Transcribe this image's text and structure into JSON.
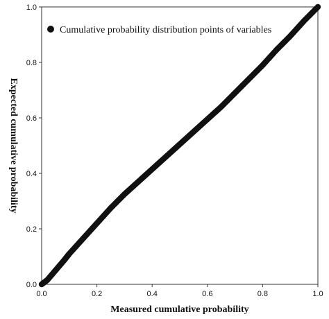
{
  "chart_data": {
    "type": "scatter",
    "xlabel": "Measured cumulative probability",
    "ylabel": "Expected cumulative probability",
    "xlim": [
      0.0,
      1.0
    ],
    "ylim": [
      0.0,
      1.0
    ],
    "x_ticks": [
      "0.0",
      "0.2",
      "0.4",
      "0.6",
      "0.8",
      "1.0"
    ],
    "y_ticks": [
      "0.0",
      "0.2",
      "0.4",
      "0.6",
      "0.8",
      "1.0"
    ],
    "grid": false,
    "legend_position": "top-left",
    "marker_color": "#111111",
    "series": [
      {
        "name": "Cumulative probability distribution points of variables",
        "x": [
          0.0,
          0.02,
          0.05,
          0.08,
          0.1,
          0.15,
          0.2,
          0.25,
          0.3,
          0.35,
          0.4,
          0.45,
          0.5,
          0.55,
          0.6,
          0.65,
          0.7,
          0.75,
          0.8,
          0.85,
          0.9,
          0.95,
          1.0
        ],
        "y": [
          0.0,
          0.015,
          0.05,
          0.085,
          0.11,
          0.165,
          0.22,
          0.275,
          0.325,
          0.37,
          0.415,
          0.46,
          0.505,
          0.55,
          0.595,
          0.64,
          0.69,
          0.74,
          0.79,
          0.845,
          0.895,
          0.95,
          1.0
        ]
      }
    ]
  }
}
